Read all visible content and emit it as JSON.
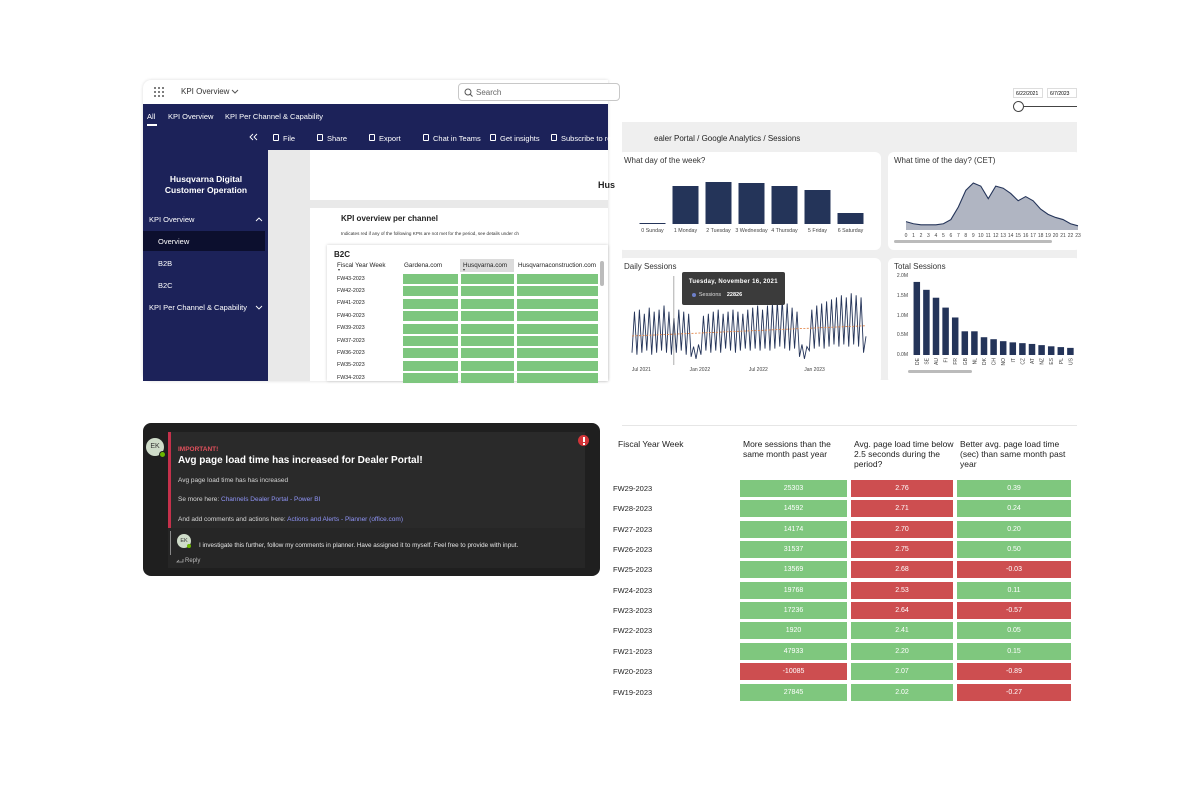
{
  "powerbi": {
    "app_title": "KPI Overview",
    "search": "Search",
    "tabs": [
      "All",
      "KPI Overview",
      "KPI Per Channel & Capability"
    ],
    "toolbar": [
      "File",
      "Share",
      "Export",
      "Chat in Teams",
      "Get insights",
      "Subscribe to re"
    ],
    "sidebar_title": "Husqvarna Digital Customer Operation",
    "nav": [
      "KPI Overview",
      "Overview",
      "B2B",
      "B2C",
      "KPI Per Channel & Capability"
    ],
    "brand": "Hus",
    "report_title": "KPI overview per channel",
    "note": "Indicates red if any of the following KPIs are not met for the period, see details under ch",
    "table": {
      "title": "B2C",
      "columns": [
        "Fiscal Year Week",
        "Gardena.com",
        "Husqvarna.com",
        "Husqvarnaconstruction.com"
      ],
      "rows": [
        "FW43-2023",
        "FW42-2023",
        "FW41-2023",
        "FW40-2023",
        "FW39-2023",
        "FW37-2023",
        "FW36-2023",
        "FW35-2023",
        "FW34-2023"
      ],
      "cell_color": "#7dc67e"
    }
  },
  "analytics": {
    "date_from": "6/22/2021",
    "date_to": "6/7/2023",
    "breadcrumb": "ealer Portal / Google Analytics  / Sessions"
  },
  "chart_data": [
    {
      "type": "bar",
      "title": "What day of the week?",
      "categories": [
        "0 Sunday",
        "1 Monday",
        "2 Tuesday",
        "3 Wednesday",
        "4 Thursday",
        "5 Friday",
        "6 Saturday"
      ],
      "values": [
        1,
        38,
        42,
        41,
        38,
        34,
        11
      ],
      "color": "#243459"
    },
    {
      "type": "area",
      "title": "What time of the day? (CET)",
      "x": [
        0,
        1,
        2,
        3,
        4,
        5,
        6,
        7,
        8,
        9,
        10,
        11,
        12,
        13,
        14,
        15,
        16,
        17,
        18,
        19,
        20,
        21,
        22,
        23
      ],
      "xlim": [
        0,
        23
      ],
      "values": [
        8,
        6,
        5,
        5,
        5,
        6,
        10,
        22,
        38,
        45,
        42,
        30,
        42,
        40,
        35,
        28,
        32,
        28,
        20,
        15,
        12,
        10,
        6,
        4
      ],
      "color": "#a7adbb"
    },
    {
      "type": "line",
      "title": "Daily Sessions",
      "ylim": [
        0,
        40000
      ],
      "color": "#243459",
      "xtick_labels": [
        "Jul 2021",
        "Jan 2022",
        "Jul 2022",
        "Jan 2023"
      ],
      "values": [
        6000,
        26000,
        5000,
        27000,
        6000,
        25000,
        7000,
        28000,
        5000,
        26000,
        6000,
        27000,
        7000,
        29000,
        6000,
        26000,
        5000,
        22826,
        6000,
        27000,
        7000,
        26000,
        5000,
        25000,
        4000,
        9000,
        3000,
        10000,
        5000,
        24000,
        7000,
        25000,
        6000,
        26000,
        7000,
        27000,
        6000,
        25000,
        8000,
        26000,
        7000,
        27000,
        6000,
        26000,
        7000,
        25000,
        8000,
        27000,
        7000,
        28000,
        8000,
        29000,
        7000,
        27000,
        8000,
        29000,
        7000,
        30000,
        8000,
        31000,
        9000,
        32000,
        8000,
        30000,
        7000,
        28000,
        8000,
        26000,
        4000,
        10000,
        3000,
        9000,
        7000,
        27000,
        8000,
        29000,
        9000,
        30000,
        8000,
        31000,
        9000,
        32000,
        10000,
        33000,
        9000,
        34000,
        10000,
        33000,
        9000,
        35000,
        10000,
        34000,
        9000,
        33000,
        6000,
        14000
      ],
      "tooltip": {
        "date": "Tuesday, November 16, 2021",
        "series": "Sessions",
        "value": 22826
      }
    },
    {
      "type": "bar",
      "title": "Total Sessions",
      "color": "#243459",
      "categories": [
        "DE",
        "SE",
        "AU",
        "FI",
        "FR",
        "GB",
        "NL",
        "DK",
        "CH",
        "NO",
        "IT",
        "CZ",
        "AT",
        "NZ",
        "ES",
        "PL",
        "US"
      ],
      "values": [
        1850000,
        1650000,
        1450000,
        1200000,
        950000,
        600000,
        600000,
        450000,
        400000,
        350000,
        320000,
        300000,
        280000,
        250000,
        220000,
        200000,
        180000
      ],
      "ylim": [
        0,
        2000000
      ],
      "yticks": [
        {
          "value": 0,
          "label": "0.0M"
        },
        {
          "value": 500000,
          "label": "0.5M"
        },
        {
          "value": 1000000,
          "label": "1.0M"
        },
        {
          "value": 1500000,
          "label": "1.5M"
        },
        {
          "value": 2000000,
          "label": "2.0M"
        }
      ]
    }
  ],
  "teams": {
    "avatar": "EK",
    "label": "IMPORTANT!",
    "title": "Avg page load time has increased for Dealer Portal!",
    "body": "Avg page load time has has increased",
    "more_prefix": "Se more here:",
    "more_link": "Channels Dealer Portal - Power BI",
    "actions_prefix": "And add comments and actions here:",
    "actions_link": "Actions and Alerts - Planner (office.com)",
    "reply": {
      "avatar": "EK",
      "text": "I investigate this further, follow my comments in planner. Have assigned it to myself. Feel free to provide with input."
    },
    "reply_button": "Reply"
  },
  "kpi_table": {
    "columns": [
      "Fiscal Year Week",
      "More sessions than the same month past year",
      "Avg. page load time below 2.5 seconds during the period?",
      "Better avg. page load time (sec) than same month past year"
    ],
    "rows": [
      {
        "week": "FW29-2023",
        "cells": [
          "25303",
          "2.76",
          "0.39"
        ],
        "colors": [
          "#7fc77e",
          "#cd4e50",
          "#7fc77e"
        ]
      },
      {
        "week": "FW28-2023",
        "cells": [
          "14592",
          "2.71",
          "0.24"
        ],
        "colors": [
          "#7fc77e",
          "#cd4e50",
          "#7fc77e"
        ]
      },
      {
        "week": "FW27-2023",
        "cells": [
          "14174",
          "2.70",
          "0.20"
        ],
        "colors": [
          "#7fc77e",
          "#cd4e50",
          "#7fc77e"
        ]
      },
      {
        "week": "FW26-2023",
        "cells": [
          "31537",
          "2.75",
          "0.50"
        ],
        "colors": [
          "#7fc77e",
          "#cd4e50",
          "#7fc77e"
        ]
      },
      {
        "week": "FW25-2023",
        "cells": [
          "13569",
          "2.68",
          "-0.03"
        ],
        "colors": [
          "#7fc77e",
          "#cd4e50",
          "#cd4e50"
        ]
      },
      {
        "week": "FW24-2023",
        "cells": [
          "19768",
          "2.53",
          "0.11"
        ],
        "colors": [
          "#7fc77e",
          "#cd4e50",
          "#7fc77e"
        ]
      },
      {
        "week": "FW23-2023",
        "cells": [
          "17236",
          "2.64",
          "-0.57"
        ],
        "colors": [
          "#7fc77e",
          "#cd4e50",
          "#cd4e50"
        ]
      },
      {
        "week": "FW22-2023",
        "cells": [
          "1920",
          "2.41",
          "0.05"
        ],
        "colors": [
          "#7fc77e",
          "#7fc77e",
          "#7fc77e"
        ]
      },
      {
        "week": "FW21-2023",
        "cells": [
          "47933",
          "2.20",
          "0.15"
        ],
        "colors": [
          "#7fc77e",
          "#7fc77e",
          "#7fc77e"
        ]
      },
      {
        "week": "FW20-2023",
        "cells": [
          "-10085",
          "2.07",
          "-0.89"
        ],
        "colors": [
          "#cd4e50",
          "#7fc77e",
          "#cd4e50"
        ]
      },
      {
        "week": "FW19-2023",
        "cells": [
          "27845",
          "2.02",
          "-0.27"
        ],
        "colors": [
          "#7fc77e",
          "#7fc77e",
          "#cd4e50"
        ]
      }
    ]
  }
}
